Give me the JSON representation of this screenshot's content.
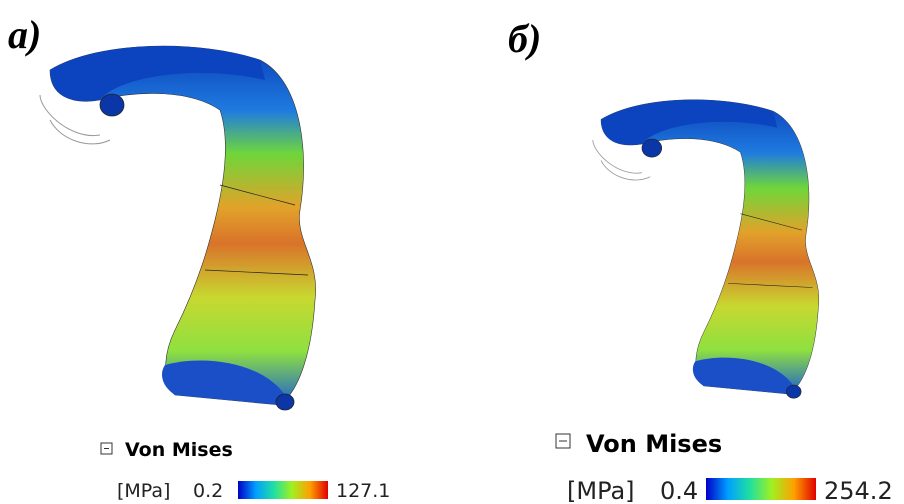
{
  "panels": [
    {
      "label": "а)",
      "legend": {
        "title": "Von Mises",
        "unit": "[MPa]",
        "min": 0.2,
        "max": 127.1
      }
    },
    {
      "label": "б)",
      "legend": {
        "title": "Von Mises",
        "unit": "[MPa]",
        "min": 0.4,
        "max": 254.2
      }
    }
  ]
}
